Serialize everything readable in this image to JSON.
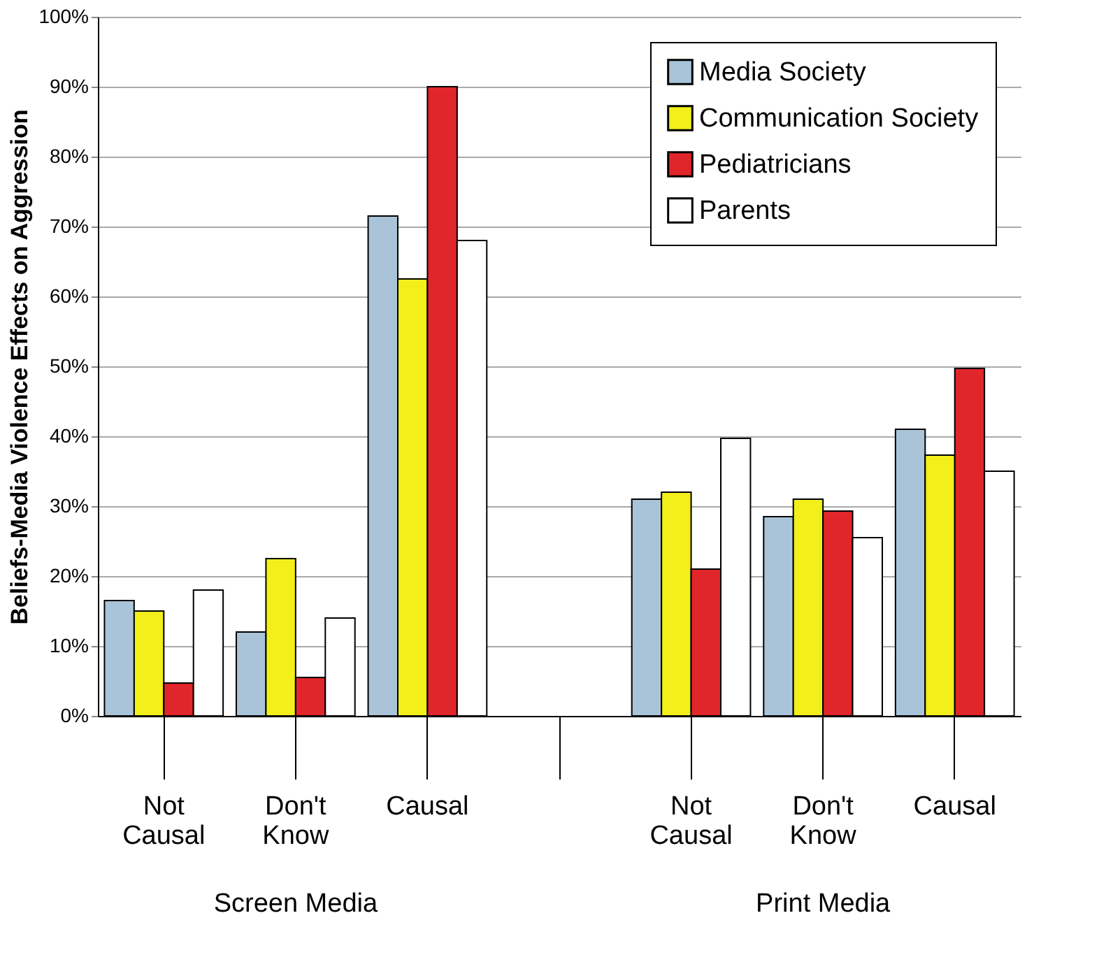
{
  "chart_data": {
    "type": "bar",
    "ylabel": "Beliefs-Media Violence Effects on Aggression",
    "categories": [
      "Not Causal",
      "Don't Know",
      "Causal",
      null,
      "Not Causal",
      "Don't Know",
      "Causal"
    ],
    "series": [
      {
        "name": "Media Society",
        "color": "#a9c4d8",
        "values": [
          16.5,
          12,
          71.5,
          null,
          31,
          28.5,
          41
        ]
      },
      {
        "name": "Communication Society",
        "color": "#f2ef1a",
        "values": [
          15,
          22.5,
          62.5,
          null,
          32,
          31,
          37.3
        ]
      },
      {
        "name": "Pediatricians",
        "color": "#e0262a",
        "values": [
          4.7,
          5.5,
          90,
          null,
          21,
          29.3,
          49.7
        ]
      },
      {
        "name": "Parents",
        "color": "#ffffff",
        "values": [
          18,
          14,
          68,
          null,
          39.7,
          25.5,
          35
        ]
      }
    ],
    "ylim": [
      0,
      100
    ],
    "yticks": [
      {
        "value": 0,
        "label": "0%"
      },
      {
        "value": 10,
        "label": "10%"
      },
      {
        "value": 20,
        "label": "20%"
      },
      {
        "value": 30,
        "label": "30%"
      },
      {
        "value": 40,
        "label": "40%"
      },
      {
        "value": 50,
        "label": "50%"
      },
      {
        "value": 60,
        "label": "60%"
      },
      {
        "value": 70,
        "label": "70%"
      },
      {
        "value": 80,
        "label": "80%"
      },
      {
        "value": 90,
        "label": "90%"
      },
      {
        "value": 100,
        "label": "100%"
      }
    ],
    "grid": "y",
    "legend": "top right",
    "annotations": [
      "Screen Media",
      "Print Media"
    ]
  }
}
